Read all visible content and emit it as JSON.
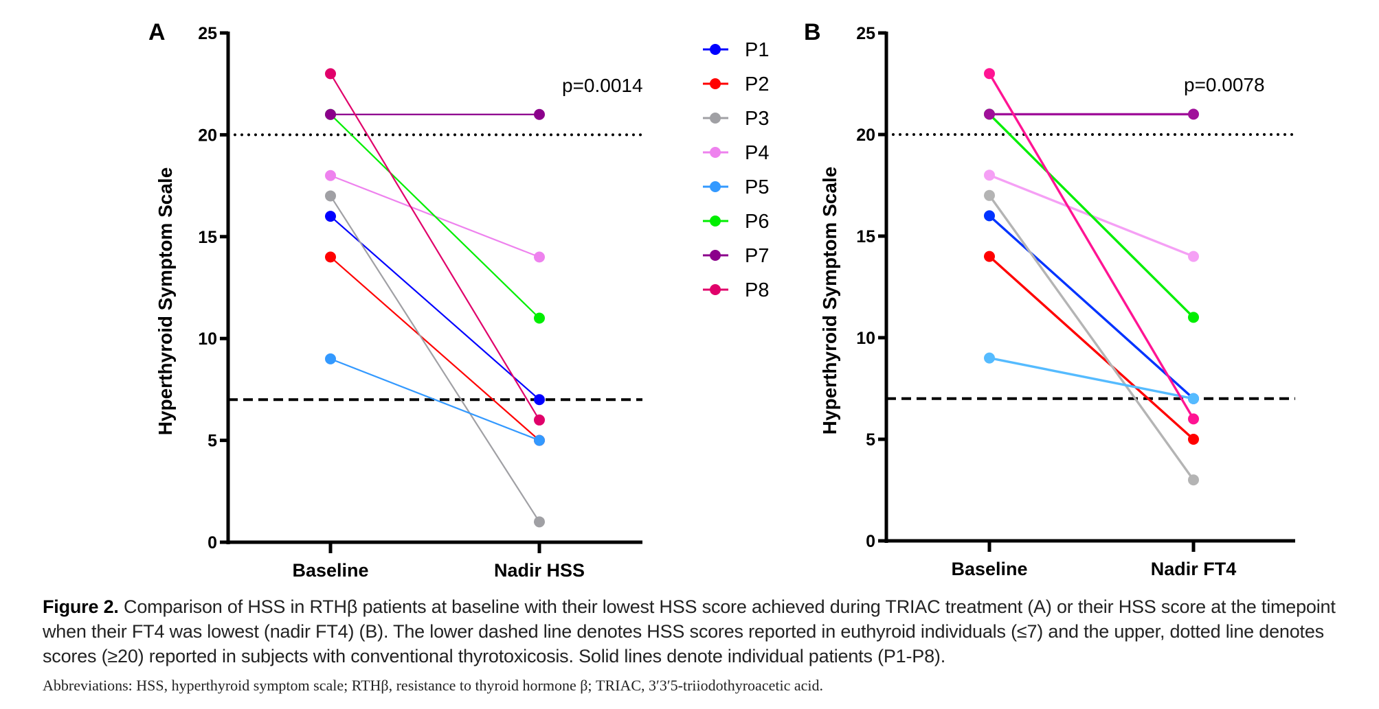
{
  "figure": {
    "caption_label": "Figure 2.",
    "caption_text": " Comparison of HSS in RTHβ patients at baseline with their lowest HSS score achieved during TRIAC treatment (A) or their HSS score at the timepoint when their FT4 was lowest (nadir FT4) (B). The lower dashed line denotes HSS scores reported in euthyroid individuals (≤7) and the upper, dotted line denotes scores (≥20) reported in subjects with conventional thyrotoxicosis. Solid lines denote individual patients (P1-P8).",
    "abbreviations": "Abbreviations: HSS, hyperthyroid symptom scale; RTHβ, resistance to thyroid hormone β; TRIAC, 3′3′5-triiodothyroacetic acid."
  },
  "chart_data": [
    {
      "type": "line",
      "panel": "A",
      "title": "",
      "xlabel": "",
      "ylabel": "Hyperthyroid Symptom Scale",
      "categories": [
        "Baseline",
        "Nadir HSS"
      ],
      "ylim": [
        0,
        25
      ],
      "yticks": [
        0,
        5,
        10,
        15,
        20,
        25
      ],
      "annotation": "p=0.0014",
      "reference_lines": [
        {
          "y": 20,
          "style": "dotted",
          "meaning": "conventional thyrotoxicosis (≥20)"
        },
        {
          "y": 7,
          "style": "dashed",
          "meaning": "euthyroid individuals (≤7)"
        }
      ],
      "series": [
        {
          "name": "P1",
          "color": "#0000ff",
          "values": [
            16,
            7
          ]
        },
        {
          "name": "P2",
          "color": "#ff0000",
          "values": [
            14,
            5
          ]
        },
        {
          "name": "P3",
          "color": "#a0a0a4",
          "values": [
            17,
            1
          ]
        },
        {
          "name": "P4",
          "color": "#ee82ee",
          "values": [
            18,
            14
          ]
        },
        {
          "name": "P5",
          "color": "#3399ff",
          "values": [
            9,
            5
          ]
        },
        {
          "name": "P6",
          "color": "#00ee00",
          "values": [
            21,
            11
          ]
        },
        {
          "name": "P7",
          "color": "#8b008b",
          "values": [
            21,
            21
          ]
        },
        {
          "name": "P8",
          "color": "#e0006a",
          "values": [
            23,
            6
          ]
        }
      ]
    },
    {
      "type": "line",
      "panel": "B",
      "title": "",
      "xlabel": "",
      "ylabel": "Hyperthyroid Symptom Scale",
      "categories": [
        "Baseline",
        "Nadir FT4"
      ],
      "ylim": [
        0,
        25
      ],
      "yticks": [
        0,
        5,
        10,
        15,
        20,
        25
      ],
      "annotation": "p=0.0078",
      "reference_lines": [
        {
          "y": 20,
          "style": "dotted",
          "meaning": "conventional thyrotoxicosis (≥20)"
        },
        {
          "y": 7,
          "style": "dashed",
          "meaning": "euthyroid individuals (≤7)"
        }
      ],
      "series": [
        {
          "name": "P1",
          "color": "#0033ff",
          "values": [
            16,
            7
          ]
        },
        {
          "name": "P2",
          "color": "#ff0000",
          "values": [
            14,
            5
          ]
        },
        {
          "name": "P3",
          "color": "#b4b4b4",
          "values": [
            17,
            3
          ]
        },
        {
          "name": "P4",
          "color": "#f5a0f5",
          "values": [
            18,
            14
          ]
        },
        {
          "name": "P5",
          "color": "#55bbff",
          "values": [
            9,
            7
          ]
        },
        {
          "name": "P6",
          "color": "#00ee00",
          "values": [
            21,
            11
          ]
        },
        {
          "name": "P7",
          "color": "#a0109a",
          "values": [
            21,
            21
          ]
        },
        {
          "name": "P8",
          "color": "#ff1493",
          "values": [
            23,
            6
          ]
        }
      ]
    }
  ],
  "legend": {
    "placement": "between-panels",
    "entries": [
      {
        "name": "P1",
        "color": "#0000ff"
      },
      {
        "name": "P2",
        "color": "#ff0000"
      },
      {
        "name": "P3",
        "color": "#a0a0a4"
      },
      {
        "name": "P4",
        "color": "#ee82ee"
      },
      {
        "name": "P5",
        "color": "#3399ff"
      },
      {
        "name": "P6",
        "color": "#00ee00"
      },
      {
        "name": "P7",
        "color": "#8b008b"
      },
      {
        "name": "P8",
        "color": "#e0006a"
      }
    ]
  }
}
